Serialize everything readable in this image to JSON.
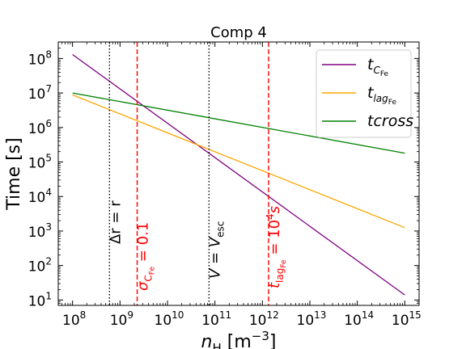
{
  "chart_data": {
    "type": "line",
    "title": "Comp 4",
    "xscale": "log",
    "yscale": "log",
    "xlim": [
      50000000.0,
      2000000000000000.0
    ],
    "ylim": [
      7,
      300000000.0
    ],
    "xlabel": {
      "main": "n",
      "sub": "H",
      "rest": " [m",
      "sup": "−3",
      "end": "]"
    },
    "ylabel": "Time [s]",
    "x_ticks": [
      {
        "base": "10",
        "exp": "8",
        "value": 100000000.0
      },
      {
        "base": "10",
        "exp": "9",
        "value": 1000000000.0
      },
      {
        "base": "10",
        "exp": "10",
        "value": 10000000000.0
      },
      {
        "base": "10",
        "exp": "11",
        "value": 100000000000.0
      },
      {
        "base": "10",
        "exp": "12",
        "value": 1000000000000.0
      },
      {
        "base": "10",
        "exp": "13",
        "value": 10000000000000.0
      },
      {
        "base": "10",
        "exp": "14",
        "value": 100000000000000.0
      },
      {
        "base": "10",
        "exp": "15",
        "value": 1000000000000000.0
      }
    ],
    "y_ticks": [
      {
        "base": "10",
        "exp": "1",
        "value": 10.0
      },
      {
        "base": "10",
        "exp": "2",
        "value": 100.0
      },
      {
        "base": "10",
        "exp": "3",
        "value": 1000.0
      },
      {
        "base": "10",
        "exp": "4",
        "value": 10000.0
      },
      {
        "base": "10",
        "exp": "5",
        "value": 100000.0
      },
      {
        "base": "10",
        "exp": "6",
        "value": 1000000.0
      },
      {
        "base": "10",
        "exp": "7",
        "value": 10000000.0
      },
      {
        "base": "10",
        "exp": "8",
        "value": 100000000.0
      }
    ],
    "series": [
      {
        "key": "tCFe",
        "color": "#800080",
        "legend": {
          "main": "t",
          "sub": "C",
          "subsub": "Fe"
        },
        "x": [
          100000000.0,
          1000000000000000.0
        ],
        "y": [
          130000000.0,
          14
        ]
      },
      {
        "key": "tlag",
        "color": "#ffa500",
        "legend": {
          "main": "t",
          "sub": "lag",
          "subsub": "Fe"
        },
        "x": [
          100000000.0,
          1000000000000000.0
        ],
        "y": [
          8800000.0,
          1250
        ]
      },
      {
        "key": "tcross",
        "color": "#008000",
        "legend": {
          "main": "t",
          "sub": "cross",
          "subsub": ""
        },
        "x": [
          100000000.0,
          1000000000000000.0
        ],
        "y": [
          10000000.0,
          180000.0
        ]
      }
    ],
    "vlines": [
      {
        "key": "dr",
        "x": 600000000.0,
        "color": "#000000",
        "style": "dotted",
        "label": {
          "text": "Δr = r"
        }
      },
      {
        "key": "sigma",
        "x": 2300000000.0,
        "color": "#ff0000",
        "style": "dashed",
        "label": {
          "main": "σ",
          "sub": "C",
          "subsub": "Fe",
          "rest": " = 0.1"
        }
      },
      {
        "key": "vesc",
        "x": 75000000000.0,
        "color": "#000000",
        "style": "dotted",
        "label": {
          "main": "V = V",
          "sub": "esc"
        }
      },
      {
        "key": "tlag10",
        "x": 1350000000000.0,
        "color": "#ff0000",
        "style": "dashed",
        "label": {
          "main": "t",
          "sub": "lag",
          "subsub": "Fe",
          "rest": " = 10",
          "sup": "4",
          "end": "s"
        }
      }
    ],
    "legend_position": "upper right",
    "grid": false
  }
}
